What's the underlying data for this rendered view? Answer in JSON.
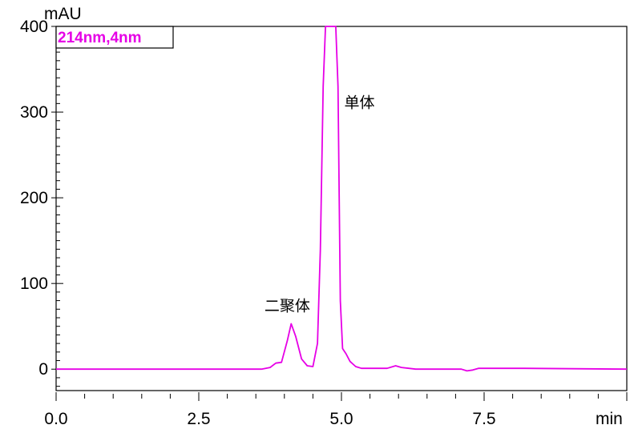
{
  "chart_data": {
    "type": "line",
    "y_unit": "mAU",
    "x_unit": "min",
    "xlim": [
      0.0,
      10.0
    ],
    "ylim": [
      -25,
      400
    ],
    "x_ticks": [
      {
        "value": 0.0,
        "label": "0.0"
      },
      {
        "value": 2.5,
        "label": "2.5"
      },
      {
        "value": 5.0,
        "label": "5.0"
      },
      {
        "value": 7.5,
        "label": "7.5"
      }
    ],
    "y_ticks": [
      {
        "value": 0,
        "label": "0"
      },
      {
        "value": 100,
        "label": "100"
      },
      {
        "value": 200,
        "label": "200"
      },
      {
        "value": 300,
        "label": "300"
      },
      {
        "value": 400,
        "label": "400"
      }
    ],
    "series": [
      {
        "name": "214nm,4nm",
        "color": "#e600e6",
        "x": [
          0.0,
          3.6,
          3.75,
          3.85,
          3.95,
          4.05,
          4.12,
          4.2,
          4.3,
          4.4,
          4.5,
          4.58,
          4.63,
          4.68,
          4.72,
          4.75,
          4.79,
          4.85,
          4.9,
          4.94,
          4.96,
          4.98,
          5.02,
          5.08,
          5.15,
          5.25,
          5.35,
          5.5,
          5.8,
          5.95,
          6.05,
          6.3,
          7.1,
          7.2,
          7.3,
          7.4,
          7.5,
          8.2,
          10.0
        ],
        "y": [
          0,
          0,
          2,
          7,
          8,
          33,
          53,
          38,
          12,
          4,
          3,
          30,
          140,
          330,
          400,
          400,
          400,
          400,
          400,
          330,
          200,
          80,
          24,
          18,
          9,
          3,
          1,
          1,
          1,
          4,
          2,
          0,
          0,
          -2,
          -1,
          1,
          1,
          1,
          0
        ]
      }
    ],
    "annotations": [
      {
        "text": "单体",
        "x": 5.05,
        "y": 305
      },
      {
        "text": "二聚体",
        "x": 3.65,
        "y": 68
      }
    ]
  }
}
